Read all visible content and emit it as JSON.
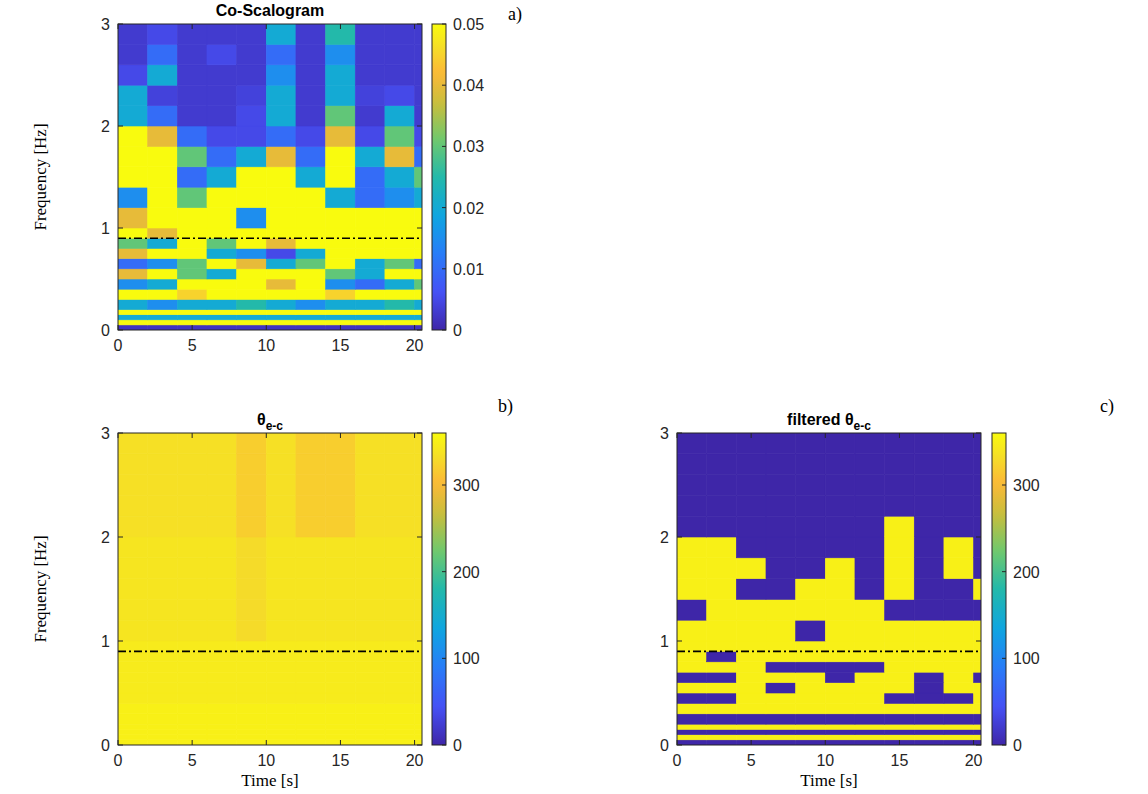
{
  "chart_data": [
    {
      "type": "heatmap",
      "title": "Co-Scalogram",
      "label": "a)",
      "ylabel": "Frequency [Hz]",
      "xlim": [
        0,
        20.5
      ],
      "ylim": [
        0,
        3
      ],
      "xticks": [
        0,
        5,
        10,
        15,
        20
      ],
      "yticks": [
        0,
        1,
        2,
        3
      ],
      "x_edges": [
        0,
        2,
        4,
        6,
        8,
        10,
        12,
        14,
        16,
        18,
        20,
        20.5
      ],
      "y_edges": [
        0,
        0.05,
        0.1,
        0.15,
        0.2,
        0.3,
        0.4,
        0.5,
        0.6,
        0.7,
        0.8,
        0.9,
        1.0,
        1.2,
        1.4,
        1.6,
        1.8,
        2.0,
        2.2,
        2.4,
        2.6,
        2.8,
        3.0
      ],
      "hline": 0.9,
      "colorbar_lim": [
        0,
        0.05
      ],
      "colorbar_ticks": [
        0,
        0.01,
        0.02,
        0.03,
        0.04,
        0.05
      ],
      "values": [
        [
          0.002,
          0.002,
          0.002,
          0.002,
          0.002,
          0.002,
          0.002,
          0.002,
          0.002,
          0.002,
          0.002
        ],
        [
          0.05,
          0.05,
          0.05,
          0.05,
          0.05,
          0.05,
          0.05,
          0.05,
          0.05,
          0.05,
          0.05
        ],
        [
          0.02,
          0.02,
          0.02,
          0.02,
          0.02,
          0.02,
          0.02,
          0.02,
          0.02,
          0.02,
          0.02
        ],
        [
          0.05,
          0.05,
          0.05,
          0.05,
          0.05,
          0.05,
          0.05,
          0.05,
          0.05,
          0.05,
          0.05
        ],
        [
          0.02,
          0.015,
          0.02,
          0.02,
          0.025,
          0.02,
          0.015,
          0.02,
          0.02,
          0.025,
          0.02
        ],
        [
          0.05,
          0.05,
          0.045,
          0.05,
          0.05,
          0.05,
          0.05,
          0.045,
          0.05,
          0.05,
          0.05
        ],
        [
          0.015,
          0.02,
          0.05,
          0.05,
          0.05,
          0.04,
          0.05,
          0.015,
          0.01,
          0.02,
          0.03
        ],
        [
          0.04,
          0.05,
          0.03,
          0.02,
          0.05,
          0.05,
          0.05,
          0.03,
          0.02,
          0.05,
          0.05
        ],
        [
          0.01,
          0.015,
          0.03,
          0.05,
          0.04,
          0.02,
          0.03,
          0.05,
          0.02,
          0.03,
          0.01
        ],
        [
          0.04,
          0.05,
          0.05,
          0.02,
          0.015,
          0.005,
          0.02,
          0.05,
          0.05,
          0.05,
          0.05
        ],
        [
          0.03,
          0.02,
          0.05,
          0.03,
          0.05,
          0.04,
          0.05,
          0.05,
          0.05,
          0.05,
          0.05
        ],
        [
          0.05,
          0.04,
          0.05,
          0.05,
          0.05,
          0.05,
          0.05,
          0.05,
          0.05,
          0.05,
          0.05
        ],
        [
          0.04,
          0.05,
          0.05,
          0.05,
          0.015,
          0.05,
          0.05,
          0.05,
          0.05,
          0.05,
          0.05
        ],
        [
          0.015,
          0.05,
          0.03,
          0.05,
          0.05,
          0.05,
          0.05,
          0.02,
          0.01,
          0.015,
          0.02
        ],
        [
          0.05,
          0.05,
          0.01,
          0.02,
          0.05,
          0.05,
          0.02,
          0.05,
          0.01,
          0.02,
          0.03
        ],
        [
          0.05,
          0.05,
          0.03,
          0.01,
          0.02,
          0.04,
          0.01,
          0.05,
          0.02,
          0.04,
          0.01
        ],
        [
          0.05,
          0.04,
          0.01,
          0.005,
          0.005,
          0.01,
          0.005,
          0.04,
          0.005,
          0.03,
          0.005
        ],
        [
          0.02,
          0.01,
          0.003,
          0.003,
          0.005,
          0.02,
          0.003,
          0.03,
          0.003,
          0.02,
          0.003
        ],
        [
          0.02,
          0.004,
          0.003,
          0.003,
          0.004,
          0.02,
          0.003,
          0.02,
          0.004,
          0.005,
          0.003
        ],
        [
          0.005,
          0.02,
          0.003,
          0.003,
          0.003,
          0.015,
          0.003,
          0.02,
          0.003,
          0.003,
          0.003
        ],
        [
          0.003,
          0.01,
          0.003,
          0.005,
          0.003,
          0.01,
          0.003,
          0.015,
          0.003,
          0.003,
          0.003
        ],
        [
          0.003,
          0.005,
          0.003,
          0.003,
          0.003,
          0.02,
          0.003,
          0.025,
          0.003,
          0.003,
          0.003
        ]
      ]
    },
    {
      "type": "heatmap",
      "title": "θ",
      "title_subscript": "e-c",
      "label": "b)",
      "ylabel": "Frequency [Hz]",
      "xlabel": "Time [s]",
      "xlim": [
        0,
        20.5
      ],
      "ylim": [
        0,
        3
      ],
      "xticks": [
        0,
        5,
        10,
        15,
        20
      ],
      "yticks": [
        0,
        1,
        2,
        3
      ],
      "x_edges": [
        0,
        2,
        4,
        6,
        8,
        10,
        12,
        14,
        16,
        18,
        20,
        20.5
      ],
      "y_edges": [
        0,
        0.05,
        0.1,
        0.15,
        0.2,
        0.3,
        0.4,
        0.5,
        0.6,
        0.7,
        0.8,
        0.9,
        1.0,
        1.2,
        1.4,
        1.6,
        1.8,
        2.0,
        2.2,
        2.4,
        2.6,
        2.8,
        3.0
      ],
      "hline": 0.9,
      "colorbar_lim": [
        0,
        360
      ],
      "colorbar_ticks": [
        0,
        100,
        200,
        300
      ],
      "values": [
        [
          350,
          350,
          350,
          350,
          350,
          350,
          350,
          350,
          350,
          350,
          350
        ],
        [
          350,
          350,
          350,
          350,
          350,
          350,
          350,
          350,
          350,
          350,
          350
        ],
        [
          350,
          350,
          350,
          350,
          350,
          350,
          350,
          350,
          350,
          350,
          350
        ],
        [
          350,
          350,
          350,
          350,
          350,
          350,
          350,
          350,
          350,
          350,
          350
        ],
        [
          350,
          350,
          350,
          350,
          350,
          350,
          350,
          350,
          350,
          350,
          350
        ],
        [
          350,
          350,
          350,
          350,
          350,
          350,
          350,
          350,
          350,
          350,
          350
        ],
        [
          345,
          345,
          345,
          345,
          345,
          345,
          345,
          345,
          345,
          345,
          345
        ],
        [
          345,
          345,
          345,
          345,
          345,
          345,
          345,
          345,
          345,
          345,
          345
        ],
        [
          345,
          345,
          345,
          345,
          345,
          345,
          345,
          345,
          345,
          345,
          345
        ],
        [
          345,
          345,
          345,
          345,
          345,
          345,
          345,
          345,
          345,
          345,
          345
        ],
        [
          345,
          345,
          345,
          345,
          345,
          345,
          345,
          345,
          345,
          345,
          345
        ],
        [
          345,
          345,
          345,
          345,
          345,
          345,
          345,
          345,
          345,
          345,
          345
        ],
        [
          340,
          340,
          340,
          340,
          330,
          340,
          340,
          340,
          340,
          340,
          340
        ],
        [
          340,
          340,
          340,
          340,
          330,
          340,
          340,
          340,
          340,
          340,
          340
        ],
        [
          340,
          340,
          340,
          340,
          330,
          340,
          340,
          340,
          340,
          340,
          340
        ],
        [
          340,
          340,
          340,
          340,
          330,
          340,
          340,
          340,
          340,
          340,
          340
        ],
        [
          340,
          340,
          340,
          340,
          330,
          340,
          340,
          340,
          340,
          340,
          340
        ],
        [
          335,
          335,
          335,
          335,
          320,
          335,
          320,
          320,
          335,
          335,
          335
        ],
        [
          335,
          335,
          335,
          335,
          320,
          335,
          320,
          320,
          335,
          335,
          335
        ],
        [
          335,
          335,
          335,
          335,
          320,
          335,
          320,
          320,
          335,
          335,
          335
        ],
        [
          335,
          335,
          335,
          335,
          320,
          335,
          320,
          320,
          335,
          335,
          335
        ],
        [
          335,
          335,
          335,
          335,
          320,
          335,
          320,
          320,
          335,
          335,
          335
        ]
      ]
    },
    {
      "type": "heatmap",
      "title": "filtered θ",
      "title_subscript": "e-c",
      "label": "c)",
      "xlabel": "Time [s]",
      "xlim": [
        0,
        20.5
      ],
      "ylim": [
        0,
        3
      ],
      "xticks": [
        0,
        5,
        10,
        15,
        20
      ],
      "yticks": [
        0,
        1,
        2,
        3
      ],
      "x_edges": [
        0,
        2,
        4,
        6,
        8,
        10,
        12,
        14,
        16,
        18,
        20,
        20.5
      ],
      "y_edges": [
        0,
        0.05,
        0.1,
        0.15,
        0.2,
        0.3,
        0.4,
        0.5,
        0.6,
        0.7,
        0.8,
        0.9,
        1.0,
        1.2,
        1.4,
        1.6,
        1.8,
        2.0,
        2.2,
        2.4,
        2.6,
        2.8,
        3.0
      ],
      "hline": 0.9,
      "colorbar_lim": [
        0,
        360
      ],
      "colorbar_ticks": [
        0,
        100,
        200,
        300
      ],
      "values": [
        [
          0,
          0,
          0,
          0,
          0,
          0,
          0,
          0,
          0,
          0,
          0
        ],
        [
          350,
          350,
          350,
          350,
          350,
          350,
          350,
          350,
          350,
          350,
          350
        ],
        [
          0,
          0,
          0,
          0,
          0,
          0,
          0,
          0,
          0,
          0,
          0
        ],
        [
          350,
          350,
          350,
          350,
          350,
          350,
          350,
          350,
          350,
          350,
          350
        ],
        [
          0,
          0,
          0,
          0,
          0,
          0,
          0,
          0,
          0,
          0,
          0
        ],
        [
          350,
          350,
          350,
          350,
          350,
          350,
          350,
          350,
          350,
          350,
          350
        ],
        [
          0,
          0,
          350,
          350,
          350,
          350,
          350,
          0,
          0,
          0,
          350
        ],
        [
          350,
          350,
          350,
          0,
          350,
          350,
          350,
          350,
          0,
          350,
          350
        ],
        [
          0,
          0,
          350,
          350,
          350,
          0,
          350,
          350,
          0,
          350,
          0
        ],
        [
          350,
          350,
          350,
          0,
          0,
          0,
          0,
          350,
          350,
          350,
          350
        ],
        [
          350,
          0,
          350,
          350,
          350,
          350,
          350,
          350,
          350,
          350,
          350
        ],
        [
          350,
          350,
          350,
          350,
          350,
          350,
          350,
          350,
          350,
          350,
          350
        ],
        [
          350,
          350,
          350,
          350,
          0,
          350,
          350,
          350,
          350,
          350,
          350
        ],
        [
          0,
          350,
          350,
          350,
          350,
          350,
          350,
          0,
          0,
          0,
          0
        ],
        [
          350,
          350,
          0,
          0,
          350,
          350,
          0,
          350,
          0,
          0,
          350
        ],
        [
          350,
          350,
          350,
          0,
          0,
          350,
          0,
          350,
          0,
          350,
          0
        ],
        [
          350,
          350,
          0,
          0,
          0,
          0,
          0,
          350,
          0,
          350,
          0
        ],
        [
          0,
          0,
          0,
          0,
          0,
          0,
          0,
          350,
          0,
          0,
          0
        ],
        [
          0,
          0,
          0,
          0,
          0,
          0,
          0,
          0,
          0,
          0,
          0
        ],
        [
          0,
          0,
          0,
          0,
          0,
          0,
          0,
          0,
          0,
          0,
          0
        ],
        [
          0,
          0,
          0,
          0,
          0,
          0,
          0,
          0,
          0,
          0,
          0
        ],
        [
          0,
          0,
          0,
          0,
          0,
          0,
          0,
          0,
          0,
          0,
          0
        ]
      ]
    }
  ]
}
